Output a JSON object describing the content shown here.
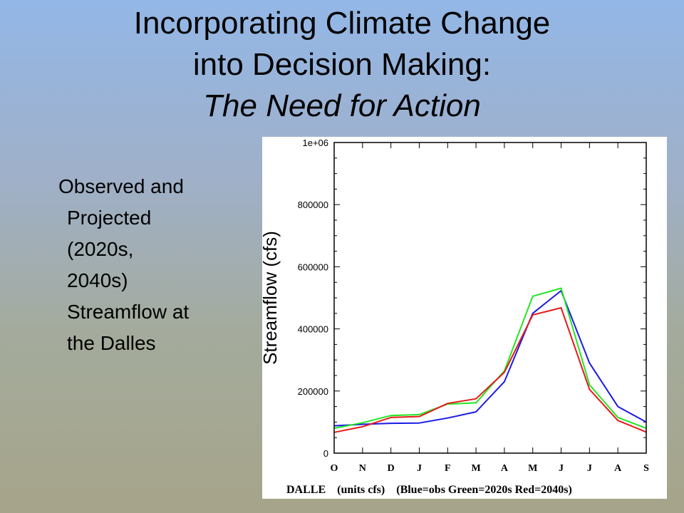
{
  "slide": {
    "title_line1": "Incorporating Climate Change",
    "title_line2": "into Decision Making:",
    "title_line3": "The Need for Action",
    "bullet_first": "Observed and",
    "bullet_rest": "Projected\n(2020s,\n2040s)\nStreamflow at\nthe Dalles"
  },
  "chart_data": {
    "type": "line",
    "ylabel": "Streamflow (cfs)",
    "caption": "DALLE    (units cfs)    (Blue=obs Green=2020s Red=2040s)",
    "categories": [
      "O",
      "N",
      "D",
      "J",
      "F",
      "M",
      "A",
      "M",
      "J",
      "J",
      "A",
      "S"
    ],
    "ylim": [
      0,
      1000000
    ],
    "yticks": [
      0,
      200000,
      400000,
      600000,
      800000,
      1000000
    ],
    "ytick_labels": [
      "0",
      "200000",
      "400000",
      "600000",
      "800000",
      "1e+06"
    ],
    "grid": false,
    "series": [
      {
        "color": "#1a1ae6",
        "values": [
          88000,
          93000,
          96000,
          97000,
          113000,
          133000,
          230000,
          450000,
          523000,
          290000,
          150000,
          100000
        ]
      },
      {
        "color": "#22e622",
        "values": [
          80000,
          98000,
          121000,
          124000,
          158000,
          162000,
          265000,
          505000,
          531000,
          220000,
          115000,
          80000
        ]
      },
      {
        "color": "#e61a1a",
        "values": [
          67000,
          85000,
          115000,
          118000,
          160000,
          175000,
          260000,
          445000,
          468000,
          205000,
          105000,
          68000
        ]
      }
    ]
  }
}
